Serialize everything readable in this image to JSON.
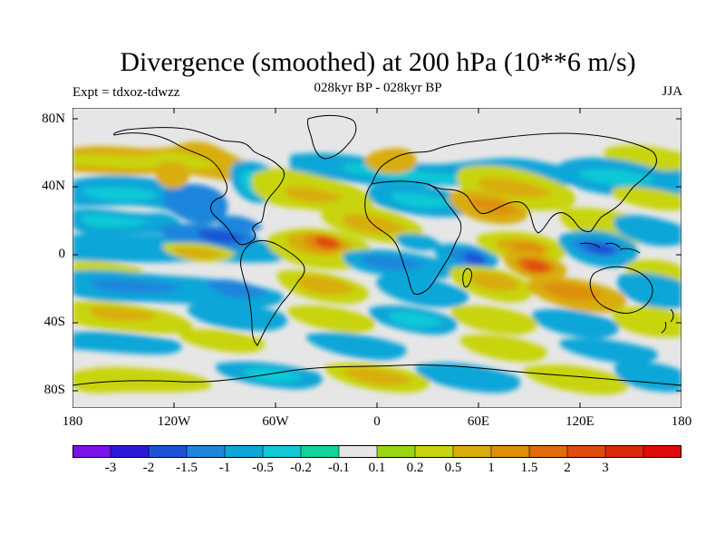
{
  "map": {
    "title": "Divergence (smoothed) at 200 hPa (10**6 m/s)",
    "subtitle": "028kyr BP - 028kyr BP",
    "experiment": "Expt = tdxoz-tdwzz",
    "season": "JJA",
    "lat_labels": [
      "80N",
      "40N",
      "0",
      "40S",
      "80S"
    ],
    "lon_labels": [
      "180",
      "120W",
      "60W",
      "0",
      "60E",
      "120E",
      "180"
    ],
    "background_color": "#e6e6e6",
    "coastline_color": "#000000"
  },
  "colorbar": {
    "colors": [
      "#7a12ea",
      "#2a1ad8",
      "#1c52d6",
      "#1f86dc",
      "#10a6d8",
      "#11c8d6",
      "#10d49b",
      "#e6e6e6",
      "#9ad512",
      "#c8d40f",
      "#d8ad0b",
      "#de8f0a",
      "#df6b0a",
      "#df4b0c",
      "#de280c",
      "#e00a0a"
    ],
    "labels": [
      "-3",
      "-2",
      "-1.5",
      "-1",
      "-0.5",
      "-0.2",
      "-0.1",
      "0.1",
      "0.2",
      "0.5",
      "1",
      "1.5",
      "2",
      "3"
    ]
  }
}
